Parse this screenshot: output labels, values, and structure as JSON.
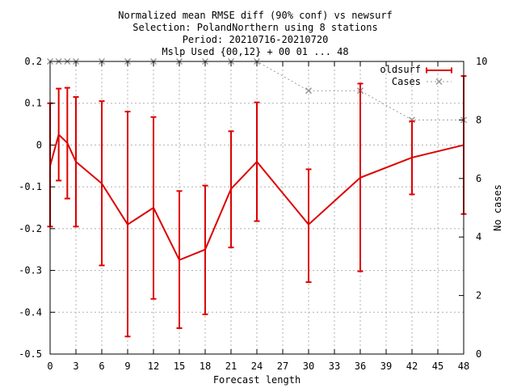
{
  "chart_data": {
    "type": "line",
    "title_lines": [
      "Normalized mean RMSE diff (90% conf) vs newsurf",
      "Selection: PolandNorthern using      8 stations",
      "Period: 20210716-20210720",
      "Mslp   Used {00,12} + 00 01 ... 48"
    ],
    "xlabel": "Forecast length",
    "ylabel": "",
    "y2label": "No cases",
    "xlim": [
      0,
      48
    ],
    "ylim": [
      -0.5,
      0.2
    ],
    "y2lim": [
      0,
      10
    ],
    "xticks": [
      0,
      3,
      6,
      9,
      12,
      15,
      18,
      21,
      24,
      27,
      30,
      33,
      36,
      39,
      42,
      45,
      48
    ],
    "yticks": [
      -0.5,
      -0.4,
      -0.3,
      -0.2,
      -0.1,
      0,
      0.1,
      0.2
    ],
    "ytick_labels": [
      "-0.5",
      "-0.4",
      "-0.3",
      "-0.2",
      "-0.1",
      "0",
      "0.1",
      "0.2"
    ],
    "y2ticks": [
      0,
      2,
      4,
      6,
      8,
      10
    ],
    "grid": true,
    "legend_position": "top-right",
    "series": [
      {
        "name": "oldsurf",
        "color": "#dd0000",
        "x": [
          0,
          1,
          2,
          3,
          6,
          9,
          12,
          15,
          18,
          21,
          24,
          30,
          36,
          42,
          48
        ],
        "y": [
          -0.05,
          0.025,
          0.005,
          -0.04,
          -0.092,
          -0.19,
          -0.15,
          -0.275,
          -0.25,
          -0.105,
          -0.04,
          -0.19,
          -0.078,
          -0.03,
          0.0
        ],
        "err_low": [
          -0.195,
          -0.085,
          -0.128,
          -0.195,
          -0.288,
          -0.458,
          -0.368,
          -0.438,
          -0.405,
          -0.245,
          -0.182,
          -0.328,
          -0.302,
          -0.118,
          -0.165
        ],
        "err_high": [
          0.1,
          0.135,
          0.137,
          0.115,
          0.105,
          0.08,
          0.067,
          -0.11,
          -0.097,
          0.033,
          0.102,
          -0.058,
          0.147,
          0.057,
          0.165
        ]
      },
      {
        "name": "Cases",
        "color": "#999999",
        "axis": "y2",
        "x": [
          0,
          1,
          2,
          3,
          6,
          9,
          12,
          15,
          18,
          21,
          24,
          30,
          36,
          42,
          48
        ],
        "y": [
          10,
          10,
          10,
          10,
          10,
          10,
          10,
          10,
          10,
          10,
          10,
          9,
          9,
          8,
          8
        ]
      }
    ]
  }
}
